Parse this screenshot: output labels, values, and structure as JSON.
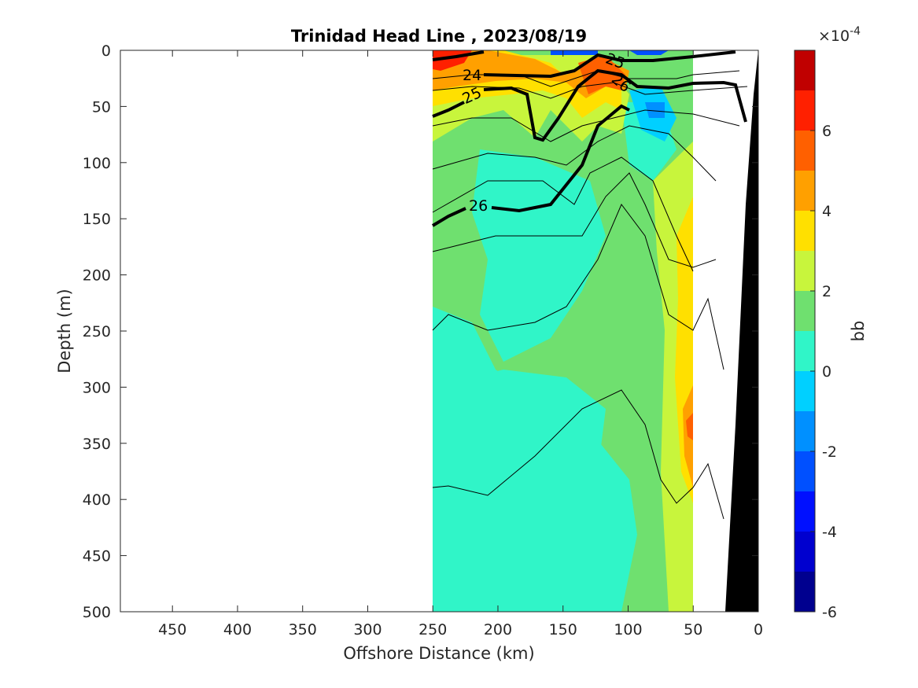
{
  "chart_data": {
    "type": "heatmap",
    "title": "Trinidad Head Line , 2023/08/19",
    "xlabel": "Offshore Distance (km)",
    "ylabel": "Depth (m)",
    "xlim": [
      490,
      0
    ],
    "ylim": [
      0,
      500
    ],
    "y_reversed": true,
    "x_reversed": true,
    "xticks": [
      "450",
      "400",
      "350",
      "300",
      "250",
      "200",
      "150",
      "100",
      "50",
      "0"
    ],
    "yticks": [
      "0",
      "50",
      "100",
      "150",
      "200",
      "250",
      "300",
      "350",
      "400",
      "450",
      "500"
    ],
    "data_extent_km": [
      250,
      50
    ],
    "colorbar": {
      "label": "bb",
      "exponent": "×10",
      "exponent_power": "-4",
      "range": [
        -6,
        8
      ],
      "ticks": [
        "6",
        "4",
        "2",
        "0",
        "-2",
        "-4",
        "-6"
      ],
      "colors": [
        "#00008f",
        "#0000cf",
        "#0010ff",
        "#0050ff",
        "#0090ff",
        "#00d0ff",
        "#30f5c8",
        "#6fe06f",
        "#c8f53c",
        "#ffe000",
        "#ffa000",
        "#ff6000",
        "#ff2000",
        "#c00000"
      ]
    },
    "contour_labels": [
      "24",
      "25",
      "25",
      "26",
      "26"
    ],
    "bathymetry_color": "#000000"
  }
}
